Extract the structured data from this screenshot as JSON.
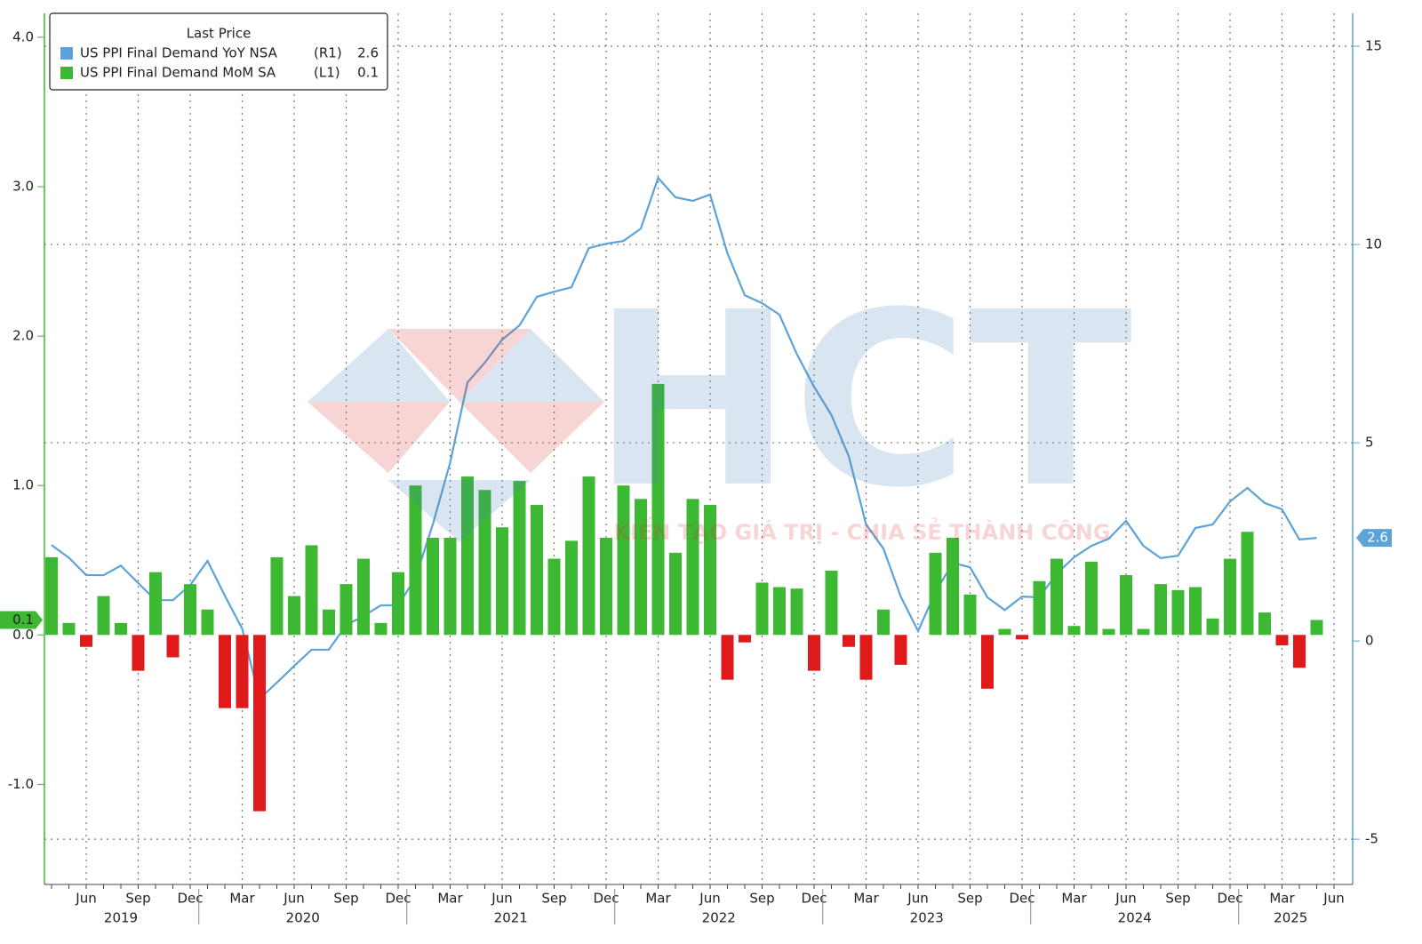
{
  "chart_data": {
    "type": "combo",
    "legend_title": "Last Price",
    "watermark": {
      "title": "HCT",
      "slogan": "KIẾN TẠO GIÁ TRỊ - CHIA SẺ THÀNH CÔNG"
    },
    "years": [
      {
        "label": "2019",
        "months": [
          null,
          null,
          "Jun",
          null,
          null,
          "Sep",
          null,
          null,
          "Dec"
        ]
      },
      {
        "label": "2020",
        "months": [
          null,
          null,
          "Mar",
          null,
          null,
          "Jun",
          null,
          null,
          "Sep",
          null,
          null,
          "Dec"
        ]
      },
      {
        "label": "2021",
        "months": [
          null,
          null,
          "Mar",
          null,
          null,
          "Jun",
          null,
          null,
          "Sep",
          null,
          null,
          "Dec"
        ]
      },
      {
        "label": "2022",
        "months": [
          null,
          null,
          "Mar",
          null,
          null,
          "Jun",
          null,
          null,
          "Sep",
          null,
          null,
          "Dec"
        ]
      },
      {
        "label": "2023",
        "months": [
          null,
          null,
          "Mar",
          null,
          null,
          "Jun",
          null,
          null,
          "Sep",
          null,
          null,
          "Dec"
        ]
      },
      {
        "label": "2024",
        "months": [
          null,
          null,
          "Mar",
          null,
          null,
          "Jun",
          null,
          null,
          "Sep",
          null,
          null,
          "Dec"
        ]
      },
      {
        "label": "2025",
        "months": [
          null,
          null,
          "Mar",
          null,
          null,
          "Jun"
        ]
      }
    ],
    "series": [
      {
        "name": "US PPI Final Demand YoY NSA",
        "axis_tag": "(R1)",
        "last_label": "2.6",
        "type": "line",
        "axis": "y2",
        "color": "#5ba3d9",
        "values": [
          2.42,
          2.1,
          1.66,
          1.66,
          1.9,
          1.46,
          1.03,
          1.03,
          1.41,
          2.02,
          1.14,
          0.31,
          -1.46,
          -1.05,
          -0.63,
          -0.22,
          -0.22,
          0.4,
          0.63,
          0.9,
          0.9,
          1.59,
          2.94,
          4.5,
          6.52,
          7.02,
          7.6,
          7.96,
          8.68,
          8.81,
          8.92,
          9.91,
          10.02,
          10.09,
          10.4,
          11.68,
          11.19,
          11.1,
          11.26,
          9.78,
          8.72,
          8.52,
          8.23,
          7.24,
          6.41,
          5.7,
          4.66,
          2.94,
          2.33,
          1.12,
          0.25,
          1.23,
          1.97,
          1.86,
          1.1,
          0.78,
          1.12,
          1.1,
          1.7,
          2.11,
          2.4,
          2.58,
          3.03,
          2.4,
          2.09,
          2.15,
          2.85,
          2.94,
          3.52,
          3.86,
          3.48,
          3.32,
          2.56,
          2.6,
          null
        ]
      },
      {
        "name": "US PPI Final Demand MoM SA",
        "axis_tag": "(L1)",
        "last_label": "0.1",
        "type": "bar",
        "axis": "y",
        "color": "#3cb832",
        "negative_color": "#e0191b",
        "values": [
          0.52,
          0.08,
          -0.08,
          0.26,
          0.08,
          -0.24,
          0.42,
          -0.15,
          0.34,
          0.17,
          -0.49,
          -0.49,
          -1.18,
          0.52,
          0.26,
          0.6,
          0.17,
          0.34,
          0.51,
          0.08,
          0.42,
          1.0,
          0.65,
          0.65,
          1.06,
          0.97,
          0.72,
          1.03,
          0.87,
          0.51,
          0.63,
          1.06,
          0.65,
          1.0,
          0.91,
          1.68,
          0.55,
          0.91,
          0.87,
          -0.3,
          -0.05,
          0.35,
          0.32,
          0.31,
          -0.24,
          0.43,
          -0.08,
          -0.3,
          0.17,
          -0.2,
          0,
          0.55,
          0.65,
          0.27,
          -0.36,
          0.04,
          -0.03,
          0.36,
          0.51,
          0.06,
          0.49,
          0.04,
          0.4,
          0.04,
          0.34,
          0.3,
          0.32,
          0.11,
          0.51,
          0.69,
          0.15,
          -0.07,
          -0.22,
          0.1,
          null
        ]
      }
    ],
    "ylim": [
      -1.67,
      4.16
    ],
    "yticks": [
      {
        "value": -1,
        "label": "-1.0"
      },
      {
        "value": 0,
        "label": "0.0"
      },
      {
        "value": 1,
        "label": "1.0"
      },
      {
        "value": 2,
        "label": "2.0"
      },
      {
        "value": 3,
        "label": "3.0"
      },
      {
        "value": 4,
        "label": "4.0"
      }
    ],
    "y2lim": [
      -6.14,
      15.83
    ],
    "y2ticks": [
      -5,
      0,
      5,
      10,
      15
    ],
    "grid": true
  }
}
